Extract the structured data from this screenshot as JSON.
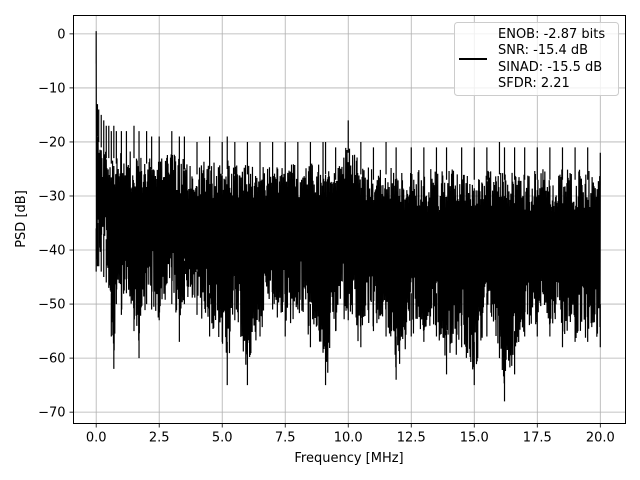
{
  "chart_data": {
    "type": "line",
    "title": "",
    "xlabel": "Frequency [MHz]",
    "ylabel": "PSD [dB]",
    "xlim": [
      -0.9,
      21.0
    ],
    "ylim": [
      -72.1,
      3.4
    ],
    "grid": true,
    "xticks": [
      0.0,
      2.5,
      5.0,
      7.5,
      10.0,
      12.5,
      15.0,
      17.5,
      20.0
    ],
    "xtick_labels": [
      "0.0",
      "2.5",
      "5.0",
      "7.5",
      "10.0",
      "12.5",
      "15.0",
      "17.5",
      "20.0"
    ],
    "yticks": [
      0,
      -10,
      -20,
      -30,
      -40,
      -50,
      -60,
      -70
    ],
    "ytick_labels": [
      "0",
      "−10",
      "−20",
      "−30",
      "−40",
      "−50",
      "−60",
      "−70"
    ],
    "legend_position": "top-right",
    "legend_entries": [
      "ENOB: -2.87 bits",
      "SNR: -15.4 dB",
      "SINAD: -15.5 dB",
      "SFDR: 2.21"
    ],
    "series": [
      {
        "line_color": "#000000",
        "x": [
          0.0,
          0.05,
          0.1,
          0.2,
          0.3,
          0.4,
          0.5,
          0.6,
          0.7,
          0.8,
          1.0,
          1.2,
          1.5,
          1.7,
          2.0,
          2.2,
          2.5,
          3.0,
          3.3,
          3.5,
          4.0,
          4.5,
          5.0,
          5.2,
          5.5,
          6.0,
          6.5,
          7.0,
          7.5,
          8.0,
          8.5,
          9.0,
          9.1,
          9.5,
          10.0,
          10.5,
          11.0,
          11.5,
          11.9,
          12.5,
          13.0,
          13.5,
          13.9,
          14.5,
          15.0,
          15.5,
          16.0,
          16.2,
          16.6,
          17.0,
          17.5,
          18.0,
          18.5,
          19.0,
          19.5,
          20.0
        ],
        "upper": [
          0.5,
          -13,
          -14,
          -15,
          -16,
          -17,
          -17,
          -18,
          -17,
          -18,
          -18,
          -18,
          -17,
          -18,
          -18,
          -19,
          -19,
          -18,
          -19,
          -19,
          -20,
          -19,
          -20,
          -19,
          -20,
          -20,
          -20,
          -20,
          -20,
          -20,
          -20,
          -20,
          -20,
          -21,
          -16,
          -20,
          -21,
          -20,
          -21,
          -21,
          -21,
          -21,
          -21,
          -21,
          -21,
          -21,
          -20,
          -21,
          -21,
          -21,
          -21,
          -21,
          -21,
          -21,
          -21,
          -22
        ],
        "lower": [
          -44,
          -43,
          -43,
          -44,
          -45,
          -46,
          -47,
          -56,
          -62,
          -50,
          -52,
          -48,
          -55,
          -60,
          -50,
          -51,
          -53,
          -50,
          -57,
          -50,
          -52,
          -56,
          -57,
          -65,
          -53,
          -65,
          -56,
          -51,
          -56,
          -51,
          -58,
          -59,
          -65,
          -55,
          -53,
          -58,
          -55,
          -56,
          -64,
          -56,
          -57,
          -56,
          -63,
          -58,
          -65,
          -56,
          -60,
          -68,
          -63,
          -56,
          -56,
          -56,
          -58,
          -57,
          -57,
          -58
        ]
      }
    ]
  }
}
